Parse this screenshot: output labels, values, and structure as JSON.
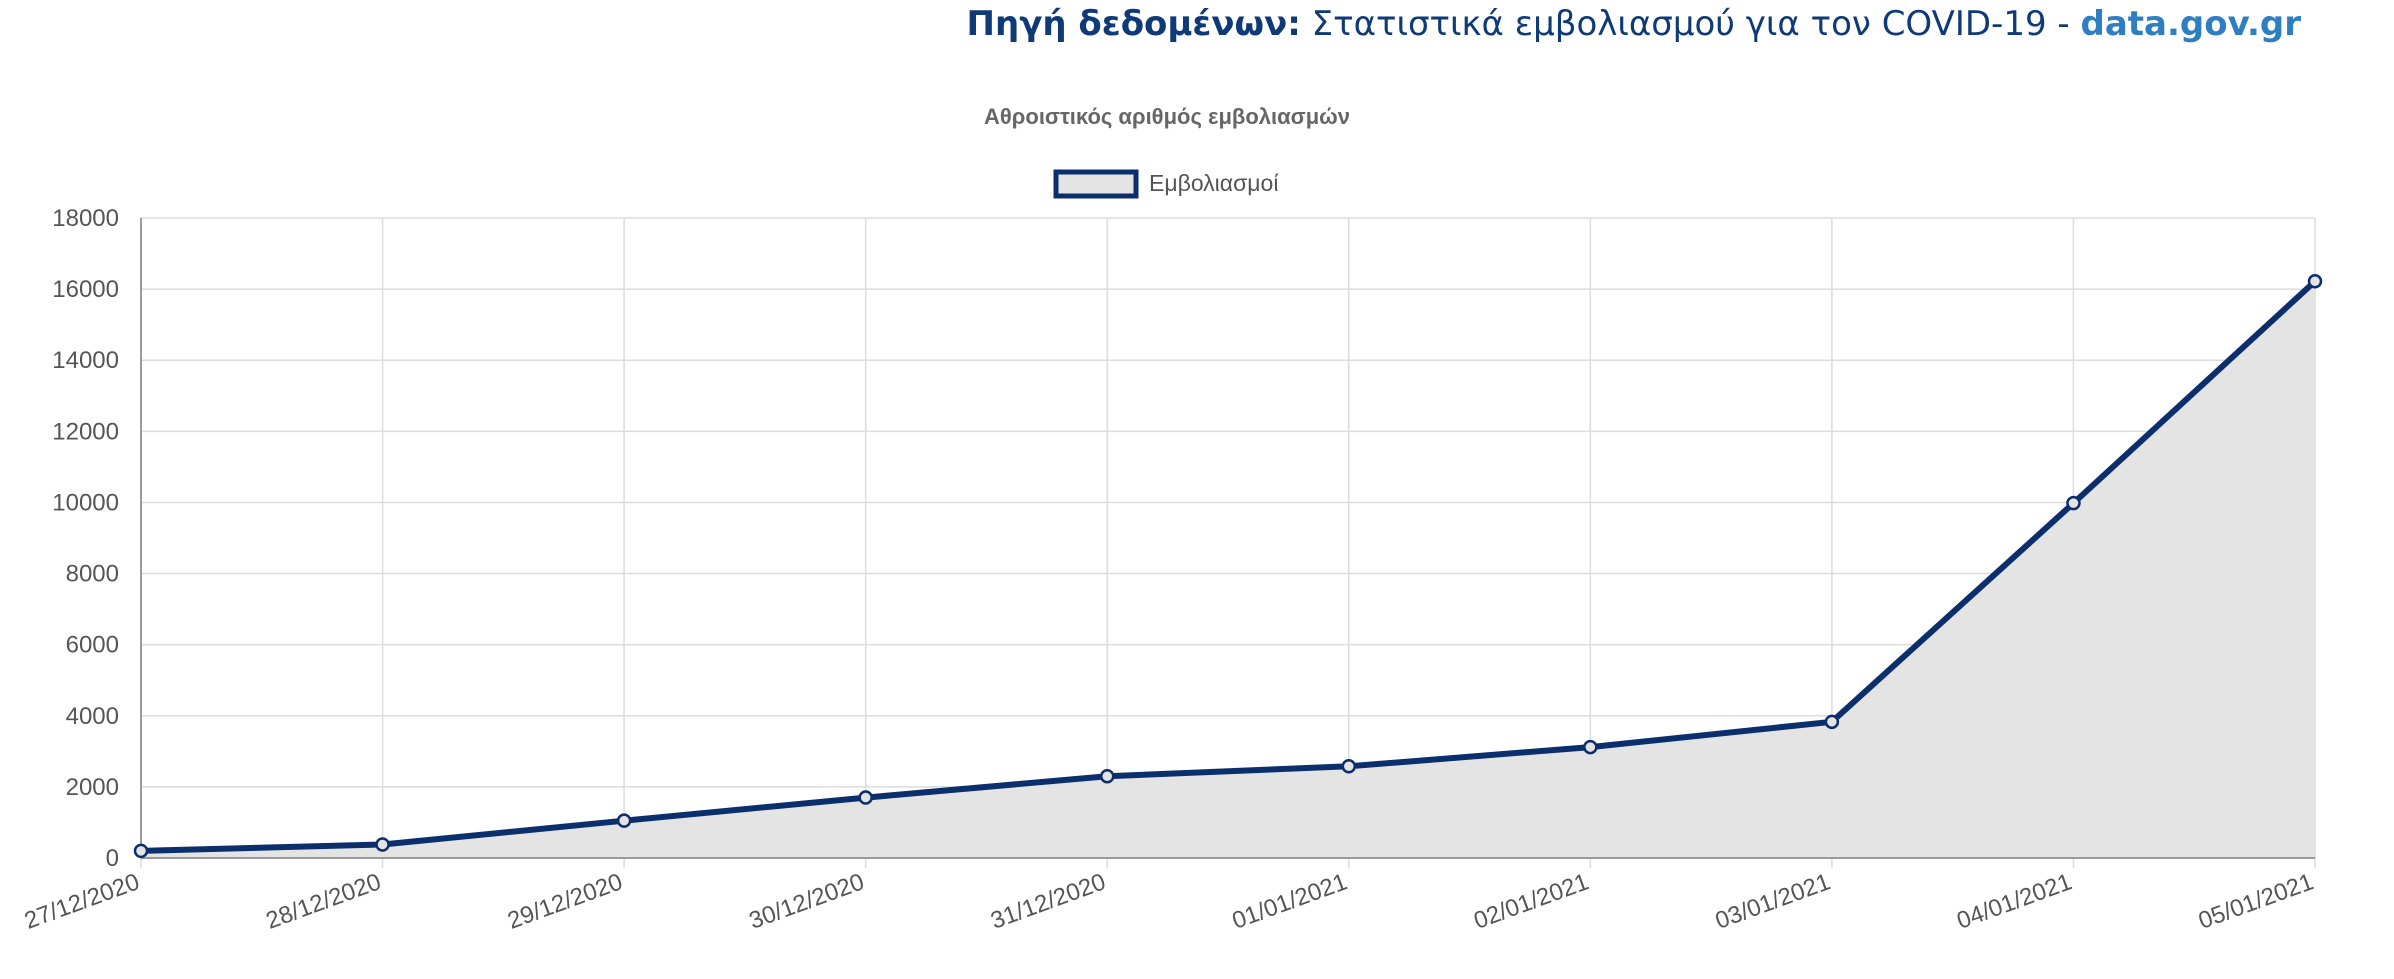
{
  "source": {
    "label": "Πηγή δεδομένων:",
    "text": "Στατιστικά εμβολιασμού για τον COVID-19 -",
    "link": "data.gov.gr"
  },
  "colors": {
    "line": "#0a2f6c",
    "fill": "#e4e4e4",
    "grid": "#dcdcdc",
    "axis": "#9a9a9a",
    "tick_text": "#555555",
    "title_text": "#666666",
    "source_dark": "#0f3a78",
    "source_link": "#2f7ec2"
  },
  "chart_data": {
    "type": "area",
    "title": "Αθροιστικός αριθμός εμβολιασμών",
    "xlabel": "",
    "ylabel": "",
    "categories": [
      "27/12/2020",
      "28/12/2020",
      "29/12/2020",
      "30/12/2020",
      "31/12/2020",
      "01/01/2021",
      "02/01/2021",
      "03/01/2021",
      "04/01/2021",
      "05/01/2021"
    ],
    "series": [
      {
        "name": "Εμβολιασμοί",
        "values": [
          200,
          380,
          1050,
          1700,
          2300,
          2580,
          3120,
          3830,
          9980,
          16220
        ]
      }
    ],
    "ylim": [
      0,
      18000
    ],
    "yticks": [
      "0",
      "2000",
      "4000",
      "6000",
      "8000",
      "10000",
      "12000",
      "14000",
      "16000",
      "18000"
    ],
    "grid": true,
    "legend_position": "top"
  }
}
